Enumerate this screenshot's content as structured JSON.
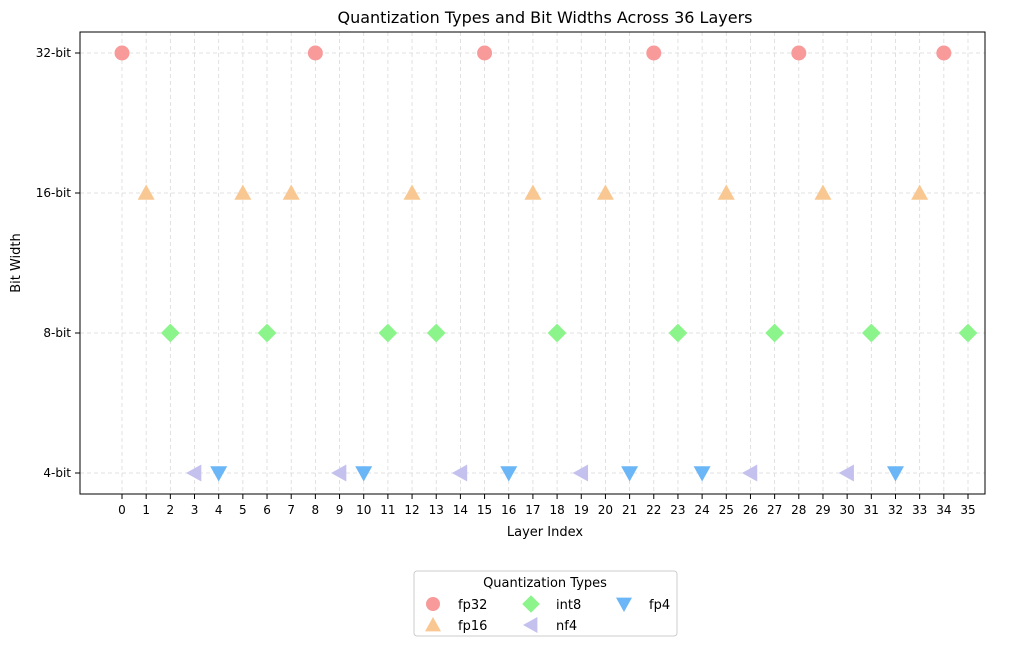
{
  "chart_data": {
    "type": "scatter",
    "title": "Quantization Types and Bit Widths Across 36 Layers",
    "xlabel": "Layer Index",
    "ylabel": "Bit Width",
    "x_ticks": [
      0,
      1,
      2,
      3,
      4,
      5,
      6,
      7,
      8,
      9,
      10,
      11,
      12,
      13,
      14,
      15,
      16,
      17,
      18,
      19,
      20,
      21,
      22,
      23,
      24,
      25,
      26,
      27,
      28,
      29,
      30,
      31,
      32,
      33,
      34,
      35
    ],
    "y_ticks": [
      {
        "label": "4-bit",
        "value": 4
      },
      {
        "label": "8-bit",
        "value": 8
      },
      {
        "label": "16-bit",
        "value": 16
      },
      {
        "label": "32-bit",
        "value": 32
      }
    ],
    "y_scale": "categorical bit levels",
    "grid": true,
    "legend": {
      "title": "Quantization Types",
      "placement": "bottom-center, below plot",
      "columns": 3
    },
    "series": [
      {
        "name": "fp32",
        "marker": "circle",
        "color": "#f89a9a",
        "bit": 32,
        "layers": [
          0,
          8,
          15,
          22,
          28,
          34
        ]
      },
      {
        "name": "fp16",
        "marker": "triangle-up",
        "color": "#f9c892",
        "bit": 16,
        "layers": [
          1,
          5,
          7,
          12,
          17,
          20,
          25,
          29,
          33
        ]
      },
      {
        "name": "int8",
        "marker": "diamond",
        "color": "#8bf58b",
        "bit": 8,
        "layers": [
          2,
          6,
          11,
          13,
          18,
          23,
          27,
          31,
          35
        ]
      },
      {
        "name": "nf4",
        "marker": "triangle-left",
        "color": "#c4c1ef",
        "bit": 4,
        "layers": [
          3,
          9,
          14,
          19,
          26,
          30
        ]
      },
      {
        "name": "fp4",
        "marker": "triangle-down",
        "color": "#6bb6f6",
        "bit": 4,
        "layers": [
          4,
          10,
          16,
          21,
          24,
          32
        ]
      }
    ]
  }
}
